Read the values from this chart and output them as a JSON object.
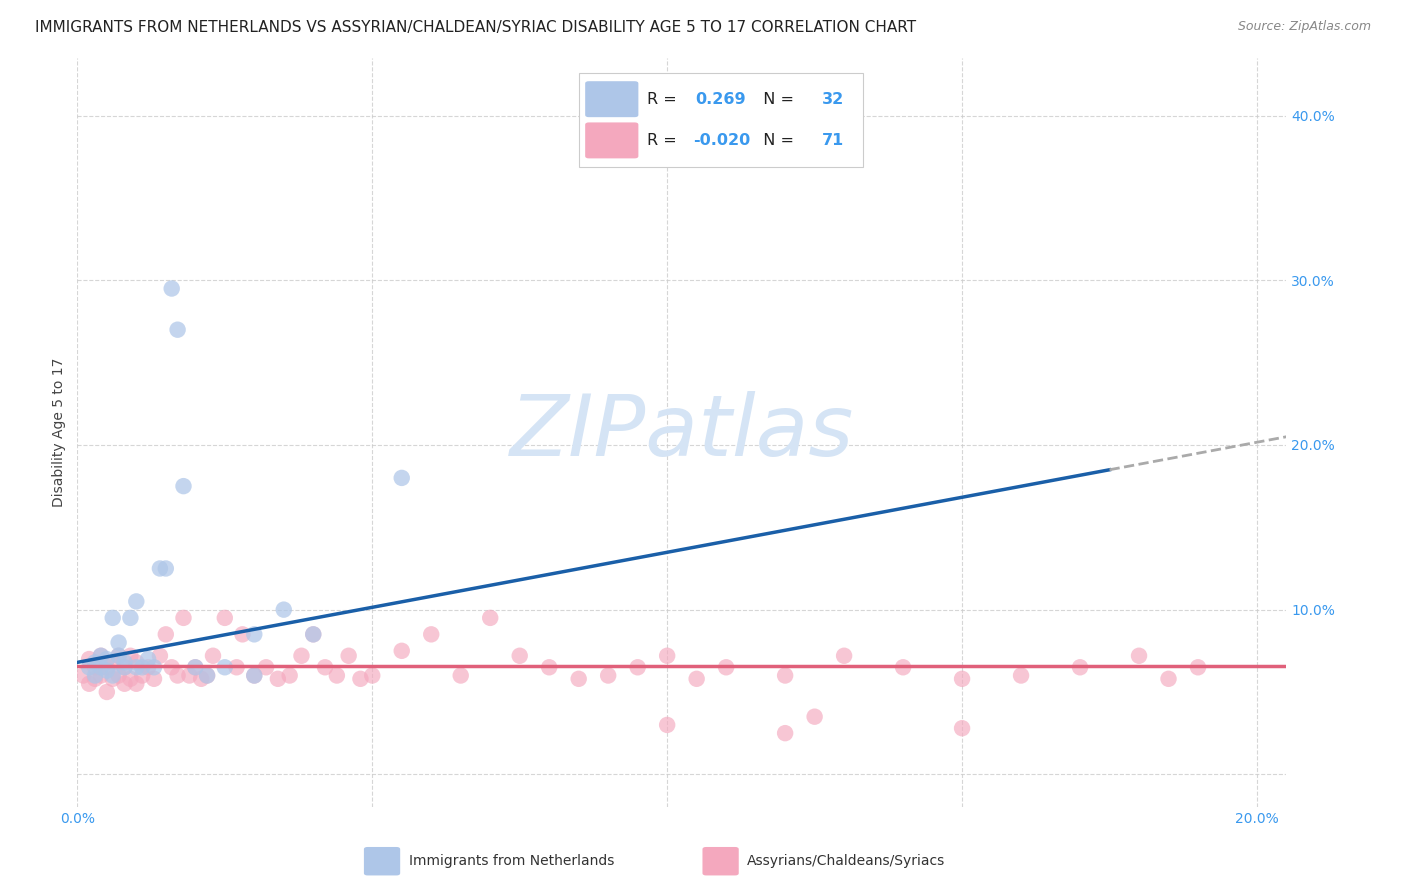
{
  "title": "IMMIGRANTS FROM NETHERLANDS VS ASSYRIAN/CHALDEAN/SYRIAC DISABILITY AGE 5 TO 17 CORRELATION CHART",
  "source": "Source: ZipAtlas.com",
  "ylabel": "Disability Age 5 to 17",
  "xlim": [
    0.0,
    0.205
  ],
  "ylim": [
    -0.02,
    0.435
  ],
  "blue_R": 0.269,
  "blue_N": 32,
  "pink_R": -0.02,
  "pink_N": 71,
  "blue_color": "#aec6e8",
  "pink_color": "#f4a8be",
  "blue_line_color": "#1a5fa8",
  "pink_line_color": "#e0607a",
  "grid_color": "#cccccc",
  "background_color": "#ffffff",
  "watermark": "ZIPatlas",
  "watermark_color": "#d5e4f5",
  "title_fontsize": 11,
  "tick_fontsize": 10,
  "ylabel_fontsize": 10,
  "blue_line_start_y": 0.068,
  "blue_line_end_y": 0.205,
  "blue_line_end_x": 0.205,
  "pink_line_y": 0.066,
  "blue_scatter_x": [
    0.002,
    0.003,
    0.003,
    0.004,
    0.004,
    0.005,
    0.005,
    0.006,
    0.006,
    0.007,
    0.007,
    0.008,
    0.008,
    0.009,
    0.01,
    0.01,
    0.011,
    0.012,
    0.013,
    0.014,
    0.015,
    0.016,
    0.017,
    0.018,
    0.02,
    0.022,
    0.025,
    0.03,
    0.03,
    0.035,
    0.04,
    0.055
  ],
  "blue_scatter_y": [
    0.065,
    0.06,
    0.068,
    0.072,
    0.065,
    0.07,
    0.063,
    0.06,
    0.095,
    0.08,
    0.072,
    0.065,
    0.068,
    0.095,
    0.065,
    0.105,
    0.065,
    0.07,
    0.065,
    0.125,
    0.125,
    0.295,
    0.27,
    0.175,
    0.065,
    0.06,
    0.065,
    0.085,
    0.06,
    0.1,
    0.085,
    0.18
  ],
  "pink_scatter_x": [
    0.001,
    0.002,
    0.002,
    0.003,
    0.003,
    0.004,
    0.004,
    0.005,
    0.005,
    0.006,
    0.006,
    0.007,
    0.007,
    0.008,
    0.008,
    0.009,
    0.009,
    0.01,
    0.01,
    0.011,
    0.012,
    0.013,
    0.014,
    0.015,
    0.016,
    0.017,
    0.018,
    0.019,
    0.02,
    0.021,
    0.022,
    0.023,
    0.025,
    0.027,
    0.028,
    0.03,
    0.032,
    0.034,
    0.036,
    0.038,
    0.04,
    0.042,
    0.044,
    0.046,
    0.048,
    0.05,
    0.055,
    0.06,
    0.065,
    0.07,
    0.075,
    0.08,
    0.085,
    0.09,
    0.095,
    0.1,
    0.105,
    0.11,
    0.12,
    0.13,
    0.14,
    0.15,
    0.16,
    0.17,
    0.18,
    0.185,
    0.19,
    0.1,
    0.12,
    0.125,
    0.15
  ],
  "pink_scatter_y": [
    0.06,
    0.055,
    0.07,
    0.058,
    0.065,
    0.06,
    0.072,
    0.05,
    0.065,
    0.058,
    0.068,
    0.06,
    0.072,
    0.055,
    0.065,
    0.058,
    0.072,
    0.055,
    0.068,
    0.06,
    0.065,
    0.058,
    0.072,
    0.085,
    0.065,
    0.06,
    0.095,
    0.06,
    0.065,
    0.058,
    0.06,
    0.072,
    0.095,
    0.065,
    0.085,
    0.06,
    0.065,
    0.058,
    0.06,
    0.072,
    0.085,
    0.065,
    0.06,
    0.072,
    0.058,
    0.06,
    0.075,
    0.085,
    0.06,
    0.095,
    0.072,
    0.065,
    0.058,
    0.06,
    0.065,
    0.072,
    0.058,
    0.065,
    0.06,
    0.072,
    0.065,
    0.058,
    0.06,
    0.065,
    0.072,
    0.058,
    0.065,
    0.03,
    0.025,
    0.035,
    0.028
  ]
}
